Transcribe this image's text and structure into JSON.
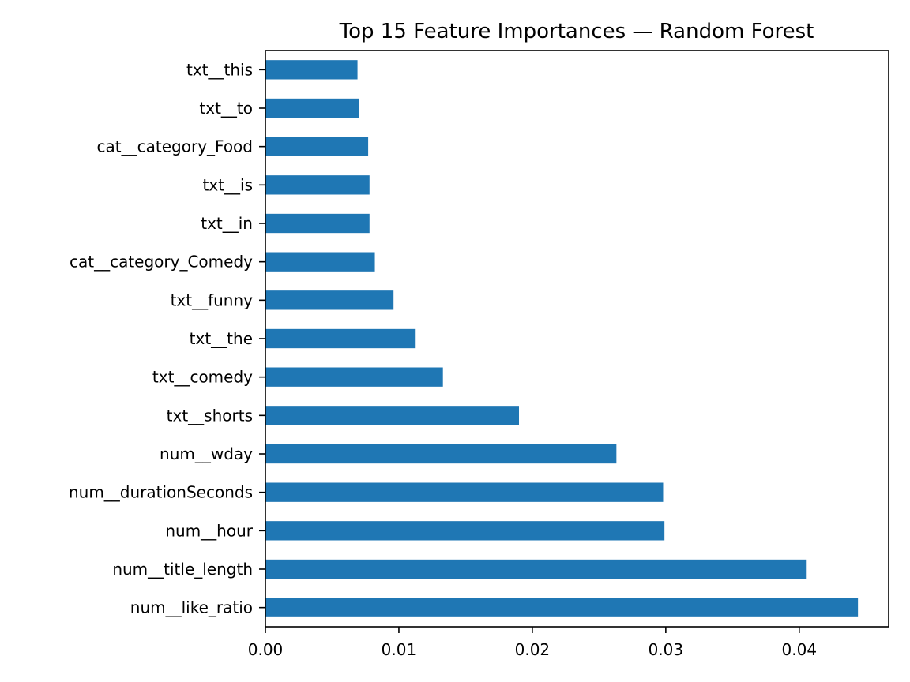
{
  "chart_data": {
    "type": "bar",
    "orientation": "horizontal",
    "title": "Top 15 Feature Importances — Random Forest",
    "xlabel": "",
    "ylabel": "",
    "categories": [
      "num__like_ratio",
      "num__title_length",
      "num__hour",
      "num__durationSeconds",
      "num__wday",
      "txt__shorts",
      "txt__comedy",
      "txt__the",
      "txt__funny",
      "cat__category_Comedy",
      "txt__in",
      "txt__is",
      "cat__category_Food",
      "txt__to",
      "txt__this"
    ],
    "values": [
      0.0444,
      0.0405,
      0.0299,
      0.0298,
      0.0263,
      0.019,
      0.0133,
      0.0112,
      0.0096,
      0.0082,
      0.0078,
      0.0078,
      0.0077,
      0.007,
      0.0069
    ],
    "xlim": [
      0,
      0.0467
    ],
    "xticks": [
      0.0,
      0.01,
      0.02,
      0.03,
      0.04
    ],
    "xtick_labels": [
      "0.00",
      "0.01",
      "0.02",
      "0.03",
      "0.04"
    ],
    "grid": false,
    "legend": "none",
    "bar_color": "#1f77b4"
  }
}
